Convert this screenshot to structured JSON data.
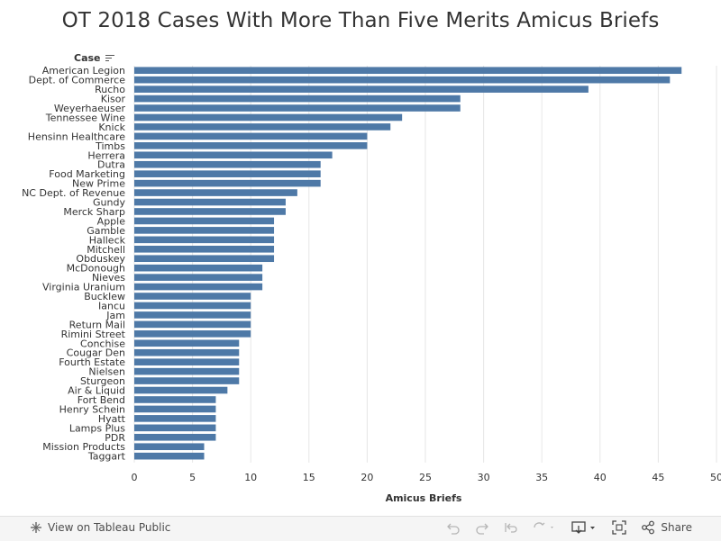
{
  "title": "OT 2018 Cases With More Than Five Merits Amicus Briefs",
  "dimension_header": "Case",
  "footer": {
    "view_label": "View on Tableau Public",
    "share_label": "Share"
  },
  "colors": {
    "bar": "#4e79a7",
    "text": "#333333",
    "grid": "#e6e6e6"
  },
  "chart_data": {
    "type": "bar",
    "orientation": "horizontal",
    "title": "OT 2018 Cases With More Than Five Merits Amicus Briefs",
    "xlabel": "Amicus Briefs",
    "ylabel": "Case",
    "xlim": [
      0,
      50
    ],
    "xticks": [
      0,
      5,
      10,
      15,
      20,
      25,
      30,
      35,
      40,
      45,
      50
    ],
    "grid": true,
    "categories": [
      "American Legion",
      "Dept. of Commerce",
      "Rucho",
      "Kisor",
      "Weyerhaeuser",
      "Tennessee Wine",
      "Knick",
      "Hensinn Healthcare",
      "Timbs",
      "Herrera",
      "Dutra",
      "Food Marketing",
      "New Prime",
      "NC Dept. of Revenue",
      "Gundy",
      "Merck Sharp",
      "Apple",
      "Gamble",
      "Halleck",
      "Mitchell",
      "Obduskey",
      "McDonough",
      "Nieves",
      "Virginia Uranium",
      "Bucklew",
      "Iancu",
      "Jam",
      "Return Mail",
      "Rimini Street",
      "Conchise",
      "Cougar Den",
      "Fourth Estate",
      "Nielsen",
      "Sturgeon",
      "Air & Liquid",
      "Fort Bend",
      "Henry Schein",
      "Hyatt",
      "Lamps Plus",
      "PDR",
      "Mission Products",
      "Taggart"
    ],
    "values": [
      47,
      46,
      39,
      28,
      28,
      23,
      22,
      20,
      20,
      17,
      16,
      16,
      16,
      14,
      13,
      13,
      12,
      12,
      12,
      12,
      12,
      11,
      11,
      11,
      10,
      10,
      10,
      10,
      10,
      9,
      9,
      9,
      9,
      9,
      8,
      7,
      7,
      7,
      7,
      7,
      6,
      6
    ]
  }
}
